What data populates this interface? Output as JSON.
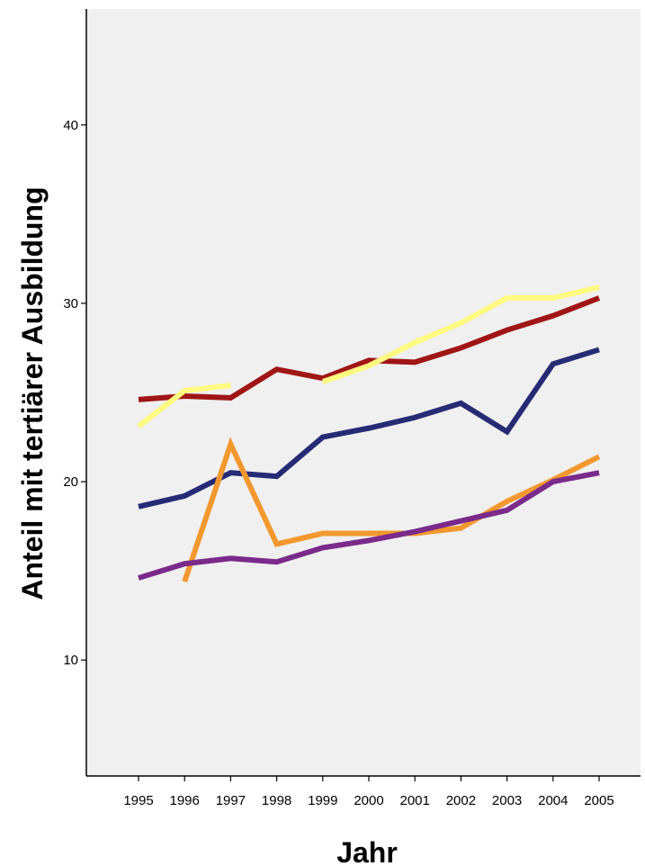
{
  "chart_data": {
    "type": "line",
    "title": "",
    "xlabel": "Jahr",
    "ylabel": "Anteil mit tertiärer Ausbildung",
    "ylim": [
      3.5,
      46.5
    ],
    "yticks": [
      10,
      20,
      30,
      40
    ],
    "categories": [
      "1995",
      "1996",
      "1997",
      "1998",
      "1999",
      "2000",
      "2001",
      "2002",
      "2003",
      "2004",
      "2005"
    ],
    "background_color": "#f0f0f0",
    "grid": false,
    "legend": "none",
    "series": [
      {
        "color": "#a01515",
        "values": [
          24.6,
          24.8,
          24.7,
          26.3,
          25.8,
          26.8,
          26.7,
          27.5,
          28.5,
          29.3,
          30.3
        ]
      },
      {
        "color": "#fffa80",
        "segments": [
          [
            [
              1995,
              23.1
            ],
            [
              1996,
              25.1
            ],
            [
              1997,
              25.4
            ]
          ],
          [
            [
              1999,
              25.6
            ],
            [
              2000,
              26.5
            ],
            [
              2001,
              27.8
            ],
            [
              2002,
              28.9
            ],
            [
              2003,
              30.3
            ],
            [
              2004,
              30.3
            ],
            [
              2005,
              30.9
            ]
          ]
        ]
      },
      {
        "color": "#262b75",
        "values": [
          18.6,
          19.2,
          20.5,
          20.3,
          22.5,
          23.0,
          23.6,
          24.4,
          22.8,
          26.6,
          27.4
        ]
      },
      {
        "color": "#f3982e",
        "values": [
          null,
          14.4,
          22.1,
          16.5,
          17.1,
          17.1,
          17.1,
          17.4,
          18.9,
          20.1,
          21.4
        ]
      },
      {
        "color": "#7a2a8a",
        "values": [
          14.6,
          15.4,
          15.7,
          15.5,
          16.3,
          16.7,
          17.2,
          17.8,
          18.4,
          20.0,
          20.5
        ]
      }
    ]
  }
}
